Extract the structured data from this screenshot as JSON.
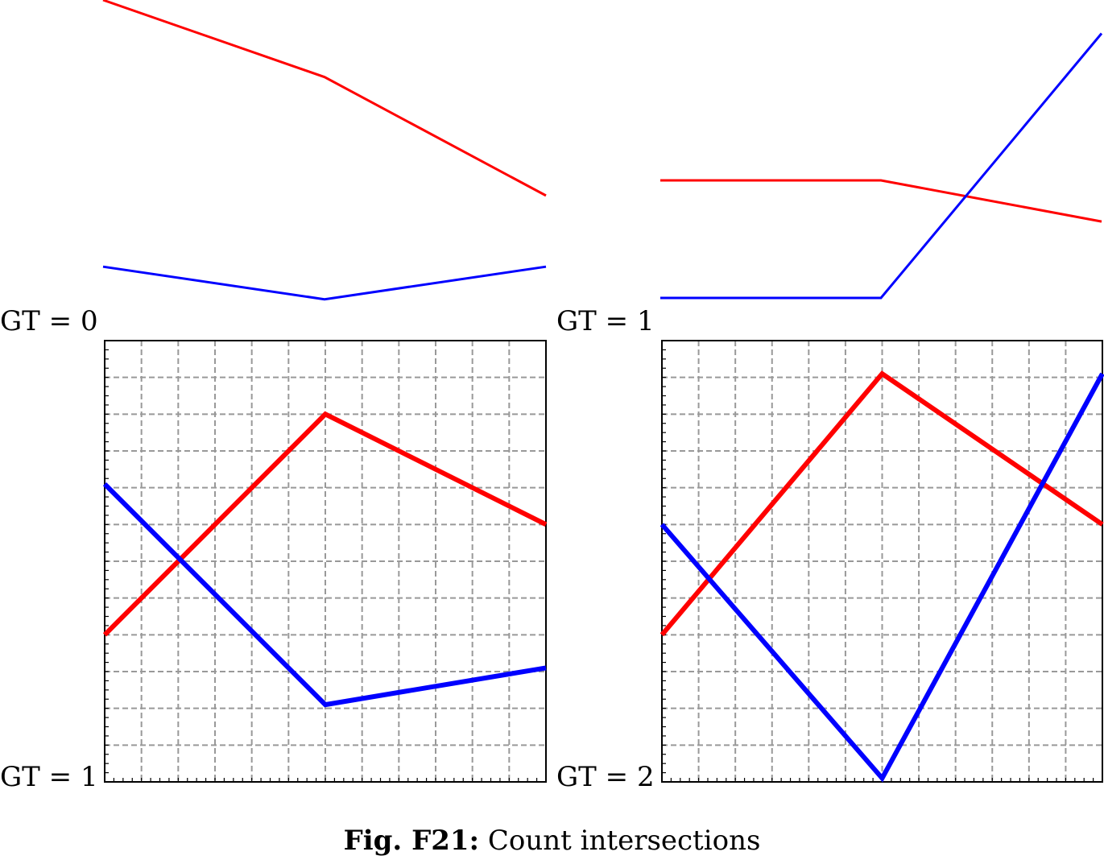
{
  "caption": {
    "prefix": "Fig. F21:",
    "text": "Count intersections"
  },
  "chart_data": [
    {
      "type": "line",
      "label": "GT = 0",
      "grid": false,
      "frame": false,
      "xlim": [
        0,
        2
      ],
      "ylim": [
        0,
        10
      ],
      "x": [
        0,
        1,
        2
      ],
      "series": [
        {
          "color": "#ff0000",
          "width": "thin",
          "values": [
            10.0,
            7.4,
            3.4
          ]
        },
        {
          "color": "#0000ff",
          "width": "thin",
          "values": [
            1.0,
            -0.1,
            1.0
          ]
        }
      ]
    },
    {
      "type": "line",
      "label": "GT = 1",
      "grid": false,
      "frame": false,
      "xlim": [
        0,
        2
      ],
      "ylim": [
        0,
        10
      ],
      "x": [
        0,
        1,
        2
      ],
      "series": [
        {
          "color": "#ff0000",
          "width": "thin",
          "values": [
            4.0,
            4.0,
            2.6
          ]
        },
        {
          "color": "#0000ff",
          "width": "thin",
          "values": [
            0.0,
            0.0,
            9.0
          ]
        }
      ]
    },
    {
      "type": "line",
      "label": "GT = 1",
      "grid": true,
      "frame": true,
      "xlim": [
        0,
        2
      ],
      "ylim": [
        0,
        12
      ],
      "x": [
        0,
        1,
        2
      ],
      "series": [
        {
          "color": "#ff0000",
          "width": "thick",
          "values": [
            4.0,
            10.0,
            7.0
          ]
        },
        {
          "color": "#0000ff",
          "width": "thick",
          "values": [
            8.1,
            2.1,
            3.1
          ]
        }
      ]
    },
    {
      "type": "line",
      "label": "GT = 2",
      "grid": true,
      "frame": true,
      "xlim": [
        0,
        2
      ],
      "ylim": [
        0,
        12
      ],
      "x": [
        0,
        1,
        2
      ],
      "series": [
        {
          "color": "#ff0000",
          "width": "thick",
          "values": [
            4.0,
            11.1,
            7.0
          ]
        },
        {
          "color": "#0000ff",
          "width": "thick",
          "values": [
            7.0,
            0.1,
            11.1
          ]
        }
      ]
    }
  ]
}
